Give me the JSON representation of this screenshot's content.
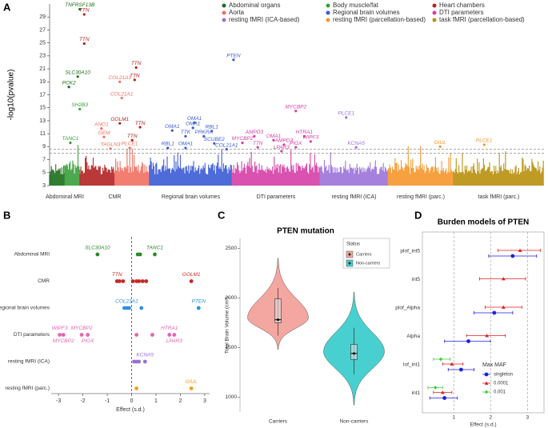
{
  "chart_data": [
    {
      "type": "manhattan",
      "panel": "A",
      "ylabel": "-log10(pvalue)",
      "ylim": [
        3,
        31
      ],
      "yticks": [
        3,
        5,
        7,
        9,
        11,
        13,
        15,
        17,
        19,
        21,
        23,
        25,
        27,
        29
      ],
      "xlim": [
        0,
        100
      ],
      "thresholds": [
        8.0,
        8.6
      ],
      "series": [
        {
          "name": "Abdominal organs",
          "color": "#1b6e1b"
        },
        {
          "name": "Body muscle/fat",
          "color": "#3aa03a"
        },
        {
          "name": "Heart chambers",
          "color": "#b22222"
        },
        {
          "name": "Aorta",
          "color": "#f07060"
        },
        {
          "name": "Regional brain volumes",
          "color": "#3b5bd6"
        },
        {
          "name": "DTI parameters",
          "color": "#d63fa6"
        },
        {
          "name": "resting fMRI (ICA-based)",
          "color": "#9b72d8"
        },
        {
          "name": "resting fMRI (parcellation-based)",
          "color": "#f5962a"
        },
        {
          "name": "task fMRI (parcellation-based)",
          "color": "#b8900e"
        }
      ],
      "groups": [
        {
          "name": "Abdominal MRI",
          "series": [
            0,
            1
          ]
        },
        {
          "name": "CMR",
          "series": [
            2,
            3
          ]
        },
        {
          "name": "Regional brain volumes",
          "series": [
            4
          ]
        },
        {
          "name": "DTI parameters",
          "series": [
            5
          ]
        },
        {
          "name": "resting fMRI (ICA)",
          "series": [
            6
          ]
        },
        {
          "name": "resting fMRI (parc.)",
          "series": [
            7
          ]
        },
        {
          "name": "task fMRI (parc.)",
          "series": [
            8
          ]
        }
      ],
      "points": [
        {
          "label": "TNFRSF13B",
          "x": 6.1,
          "y": 30.2,
          "series": 0
        },
        {
          "label": "TTN",
          "x": 7.0,
          "y": 29.4,
          "series": 2
        },
        {
          "label": "TTN",
          "x": 7.0,
          "y": 24.9,
          "series": 2
        },
        {
          "label": "SLC30A10",
          "x": 5.7,
          "y": 19.8,
          "series": 0
        },
        {
          "label": "PCK2",
          "x": 3.9,
          "y": 18.2,
          "series": 0
        },
        {
          "label": "SH2B3",
          "x": 6.1,
          "y": 14.8,
          "series": 1
        },
        {
          "label": "TANC1",
          "x": 4.2,
          "y": 9.6,
          "series": 1
        },
        {
          "label": "TTN",
          "x": 17.5,
          "y": 21.2,
          "series": 2
        },
        {
          "label": "TTN",
          "x": 17.2,
          "y": 19.3,
          "series": 2
        },
        {
          "label": "COL21A1",
          "x": 14.2,
          "y": 19.0,
          "series": 3
        },
        {
          "label": "COL21A1",
          "x": 14.6,
          "y": 16.5,
          "series": 3
        },
        {
          "label": "GOLM1",
          "x": 14.2,
          "y": 12.6,
          "series": 2
        },
        {
          "label": "ANO1",
          "x": 10.5,
          "y": 11.8,
          "series": 3
        },
        {
          "label": "TTN",
          "x": 18.3,
          "y": 12.0,
          "series": 2
        },
        {
          "label": "GEM",
          "x": 11.0,
          "y": 10.5,
          "series": 3
        },
        {
          "label": "TTN",
          "x": 16.7,
          "y": 10.0,
          "series": 2
        },
        {
          "label": "TAGLN3",
          "x": 12.3,
          "y": 8.7,
          "series": 3
        },
        {
          "label": "PLCE1",
          "x": 16.2,
          "y": 8.8,
          "series": 3
        },
        {
          "label": "PTEN",
          "x": 37.2,
          "y": 22.4,
          "series": 4
        },
        {
          "label": "OMA1",
          "x": 29.3,
          "y": 12.7,
          "series": 4
        },
        {
          "label": "OMA1",
          "x": 29.0,
          "y": 11.9,
          "series": 4
        },
        {
          "label": "OMA1",
          "x": 24.8,
          "y": 11.5,
          "series": 4
        },
        {
          "label": "TTK",
          "x": 27.5,
          "y": 10.6,
          "series": 4
        },
        {
          "label": "PRKRA",
          "x": 31.2,
          "y": 10.6,
          "series": 4
        },
        {
          "label": "RBL1",
          "x": 32.8,
          "y": 11.4,
          "series": 4
        },
        {
          "label": "RBL1",
          "x": 23.9,
          "y": 8.8,
          "series": 4
        },
        {
          "label": "OMA1",
          "x": 27.5,
          "y": 8.8,
          "series": 4
        },
        {
          "label": "SCUBE2",
          "x": 33.3,
          "y": 9.5,
          "series": 4
        },
        {
          "label": "COL21A1",
          "x": 35.8,
          "y": 8.6,
          "series": 4
        },
        {
          "label": "MYCBP2",
          "x": 49.8,
          "y": 14.5,
          "series": 5
        },
        {
          "label": "AMPD3",
          "x": 41.4,
          "y": 10.6,
          "series": 5
        },
        {
          "label": "MYCBP2",
          "x": 39.0,
          "y": 9.6,
          "series": 5
        },
        {
          "label": "TTN",
          "x": 42.1,
          "y": 8.9,
          "series": 5
        },
        {
          "label": "OMA1",
          "x": 45.3,
          "y": 10.0,
          "series": 5
        },
        {
          "label": "AMPD3",
          "x": 47.4,
          "y": 9.3,
          "series": 5
        },
        {
          "label": "LPAR3",
          "x": 46.9,
          "y": 8.3,
          "series": 5
        },
        {
          "label": "PIGX",
          "x": 49.8,
          "y": 8.9,
          "series": 5
        },
        {
          "label": "HTRA1",
          "x": 51.5,
          "y": 10.6,
          "series": 5
        },
        {
          "label": "WIPF3",
          "x": 52.8,
          "y": 9.8,
          "series": 5
        },
        {
          "label": "PLCE1",
          "x": 60.0,
          "y": 13.5,
          "series": 6
        },
        {
          "label": "KCNA5",
          "x": 62.0,
          "y": 8.9,
          "series": 6
        },
        {
          "label": "GIUL",
          "x": 79.0,
          "y": 9.0,
          "series": 7
        },
        {
          "label": "PLCE1",
          "x": 87.9,
          "y": 9.3,
          "series": 7
        }
      ]
    },
    {
      "type": "dot",
      "panel": "B",
      "xlabel": "Effect (s.d.)",
      "xlim": [
        -3.3,
        3.2
      ],
      "xticks": [
        -3,
        -2,
        -1,
        0,
        1,
        2,
        3
      ],
      "rows": [
        {
          "name": "Abdominal MRI",
          "color": "#2a8a2a",
          "values": [
            -1.4,
            0.25,
            0.35,
            0.95
          ],
          "labels": [
            "SLC30A10",
            null,
            null,
            "TANC1"
          ]
        },
        {
          "name": "CMR",
          "color": "#c62828",
          "values": [
            -0.6,
            -0.5,
            -0.35,
            0.05,
            0.2,
            0.3,
            0.45,
            0.6,
            2.45
          ],
          "labels": [
            "TTN",
            null,
            null,
            null,
            null,
            null,
            null,
            null,
            "GOLM1"
          ]
        },
        {
          "name": "Regional brain volumes",
          "color": "#2f8fe0",
          "values": [
            -0.3,
            -0.2,
            -0.1,
            0.4,
            2.75
          ],
          "labels": [
            null,
            "COL21A1",
            null,
            null,
            "PTEN"
          ]
        },
        {
          "name": "DTI parameters",
          "color": "#e066b0",
          "values": [
            -2.95,
            -2.8,
            -2.05,
            -1.8,
            0.2,
            0.85,
            1.55,
            1.75
          ],
          "labels": [
            "WIPF3",
            "MYCBP2",
            "MYCBP2",
            "PIGX",
            null,
            null,
            "HTRA1",
            "LPAR3"
          ]
        },
        {
          "name": "resting fMRI (ICA)",
          "color": "#9b6fd6",
          "values": [
            0.1,
            0.2,
            0.3,
            0.55
          ],
          "labels": [
            null,
            null,
            null,
            "KCNA5"
          ]
        },
        {
          "name": "resting fMRI (parc.)",
          "color": "#f0a020",
          "values": [
            0.2,
            2.45
          ],
          "labels": [
            null,
            "GIUL"
          ]
        }
      ]
    },
    {
      "type": "violin",
      "panel": "C",
      "title": "PTEN mutation",
      "ylabel": "Total Brain Volume (cm³)",
      "ylim": [
        850,
        2600
      ],
      "yticks": [
        1000,
        1500,
        2000,
        2500
      ],
      "legend_title": "Status",
      "categories": [
        "Carriers",
        "Non-carriers"
      ],
      "colors": [
        "#f4a6a0",
        "#48d0d0"
      ],
      "violin_low": [
        1480,
        920
      ],
      "whisker_low": [
        1620,
        1230
      ],
      "q1": [
        1750,
        1380
      ],
      "median": [
        1780,
        1440
      ],
      "q3": [
        1990,
        1530
      ],
      "whisker_high": [
        2100,
        1700
      ],
      "violin_high": [
        2400,
        2060
      ],
      "mode": [
        1800,
        1460
      ]
    },
    {
      "type": "forest",
      "panel": "D",
      "title": "Burden models of PTEN",
      "xlabel": "Effect (s.d.)",
      "xlim": [
        0.15,
        3.45
      ],
      "xticks": [
        1,
        2,
        3
      ],
      "legend_title": "Max MAF",
      "categories": [
        "plof_int5",
        "int5",
        "plof_Alpha",
        "Alpha",
        "lof_int1",
        "int1"
      ],
      "series": [
        {
          "name": "singleton",
          "color": "#1f1fe0",
          "marker": "circle",
          "values": [
            2.6,
            null,
            2.1,
            1.4,
            1.2,
            0.75
          ],
          "lower": [
            1.95,
            null,
            1.55,
            0.75,
            0.85,
            0.35
          ],
          "upper": [
            3.25,
            null,
            2.6,
            2.0,
            1.55,
            1.1
          ]
        },
        {
          "name": "0.0001",
          "color": "#e02020",
          "marker": "triangle",
          "values": [
            2.8,
            2.35,
            2.35,
            1.9,
            0.95,
            0.7
          ],
          "lower": [
            2.2,
            1.7,
            1.85,
            1.35,
            0.7,
            0.45
          ],
          "upper": [
            3.35,
            2.95,
            2.85,
            2.4,
            1.25,
            0.95
          ]
        },
        {
          "name": "0.001",
          "color": "#40d040",
          "marker": "diamond",
          "values": [
            null,
            null,
            null,
            null,
            0.65,
            0.5
          ],
          "lower": [
            null,
            null,
            null,
            null,
            0.45,
            0.3
          ],
          "upper": [
            null,
            null,
            null,
            null,
            0.9,
            0.7
          ]
        }
      ]
    }
  ]
}
